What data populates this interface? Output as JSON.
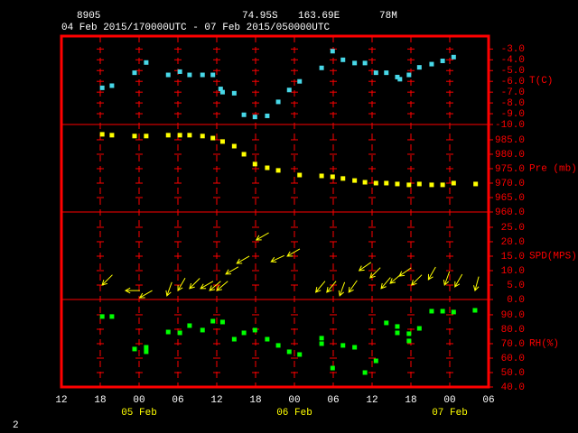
{
  "header": {
    "station": "8905",
    "latitude": "74.95S",
    "longitude": "163.69E",
    "elevation": "78M",
    "period": "04 Feb 2015/170000UTC - 07 Feb 2015/050000UTC"
  },
  "page_number": "2",
  "x_axis": {
    "xlim": [
      0,
      66
    ],
    "xticks": [
      {
        "value": 0,
        "label": "12"
      },
      {
        "value": 6,
        "label": "18"
      },
      {
        "value": 12,
        "label": "00"
      },
      {
        "value": 18,
        "label": "06"
      },
      {
        "value": 24,
        "label": "12"
      },
      {
        "value": 30,
        "label": "18"
      },
      {
        "value": 36,
        "label": "00"
      },
      {
        "value": 42,
        "label": "06"
      },
      {
        "value": 48,
        "label": "12"
      },
      {
        "value": 54,
        "label": "18"
      },
      {
        "value": 60,
        "label": "00"
      },
      {
        "value": 66,
        "label": "06"
      }
    ],
    "date_labels": [
      {
        "value": 12,
        "label": "05 Feb"
      },
      {
        "value": 36,
        "label": "06 Feb"
      },
      {
        "value": 60,
        "label": "07 Feb"
      }
    ]
  },
  "chart_data": [
    {
      "type": "scatter",
      "axis_label": "T(C)",
      "color": "#48d8e8",
      "ylim": [
        -10,
        -1.8
      ],
      "yticks": [
        {
          "value": -3,
          "label": "-3.0"
        },
        {
          "value": -4,
          "label": "-4.0"
        },
        {
          "value": -5,
          "label": "-5.0"
        },
        {
          "value": -6,
          "label": "-6.0"
        },
        {
          "value": -7,
          "label": "-7.0"
        },
        {
          "value": -8,
          "label": "-8.0"
        },
        {
          "value": -9,
          "label": "-9.0"
        },
        {
          "value": -10,
          "label": "-10.0"
        }
      ],
      "x": [
        6.3,
        7.8,
        11.3,
        13.1,
        16.5,
        18.3,
        19.8,
        21.8,
        23.4,
        24.6,
        24.9,
        26.7,
        28.2,
        29.9,
        31.8,
        33.5,
        35.2,
        36.8,
        40.2,
        41.9,
        43.5,
        45.3,
        46.9,
        48.6,
        50.2,
        51.9,
        52.3,
        53.7,
        55.3,
        57.2,
        58.9,
        60.6
      ],
      "values": [
        -6.6,
        -6.4,
        -5.2,
        -4.25,
        -5.4,
        -5.1,
        -5.4,
        -5.4,
        -5.4,
        -6.7,
        -7.0,
        -7.1,
        -9.1,
        -9.3,
        -9.2,
        -7.9,
        -6.8,
        -6.0,
        -4.75,
        -3.2,
        -4.0,
        -4.3,
        -4.3,
        -5.2,
        -5.2,
        -5.6,
        -5.8,
        -5.4,
        -4.7,
        -4.4,
        -4.1,
        -3.75
      ]
    },
    {
      "type": "scatter",
      "axis_label": "Pre (mb)",
      "color": "#ffff00",
      "ylim": [
        960,
        990.3
      ],
      "yticks": [
        {
          "value": 985,
          "label": "985.0"
        },
        {
          "value": 980,
          "label": "980.0"
        },
        {
          "value": 975,
          "label": "975.0"
        },
        {
          "value": 970,
          "label": "970.0"
        },
        {
          "value": 965,
          "label": "965.0"
        },
        {
          "value": 960,
          "label": "960.0"
        }
      ],
      "x": [
        6.3,
        7.8,
        11.3,
        13.1,
        16.5,
        18.3,
        19.8,
        21.8,
        23.4,
        24.9,
        26.7,
        28.2,
        29.9,
        31.8,
        33.5,
        36.8,
        40.2,
        41.9,
        43.5,
        45.3,
        46.9,
        48.6,
        50.2,
        51.9,
        53.7,
        55.3,
        57.2,
        58.9,
        60.6,
        64
      ],
      "values": [
        986.9,
        986.6,
        986.3,
        986.3,
        986.6,
        986.6,
        986.6,
        986.3,
        985.6,
        984.4,
        982.8,
        980,
        976.6,
        975.3,
        974.4,
        972.8,
        972.5,
        972.2,
        971.6,
        970.9,
        970.3,
        970,
        970,
        969.7,
        969.4,
        969.7,
        969.4,
        969.4,
        970,
        969.7
      ]
    },
    {
      "type": "wind",
      "axis_label": "SPD(MPS)",
      "color": "#ffff00",
      "ylim": [
        0,
        30.3
      ],
      "yticks": [
        {
          "value": 25,
          "label": "25.0"
        },
        {
          "value": 20,
          "label": "20.0"
        },
        {
          "value": 15,
          "label": "15.0"
        },
        {
          "value": 10,
          "label": "10.0"
        },
        {
          "value": 5,
          "label": "5.0"
        },
        {
          "value": 0,
          "label": "0.0"
        }
      ],
      "x": [
        6.3,
        9.9,
        12.1,
        16.3,
        18,
        19.8,
        21.5,
        22.9,
        24,
        25.4,
        27.1,
        30.1,
        32.4,
        34.9,
        39.3,
        41,
        43,
        44.4,
        46,
        47.7,
        49.4,
        50.8,
        52.2,
        54.1,
        56.7,
        59.2,
        60.8,
        63.9
      ],
      "values": [
        5,
        3.1,
        0.6,
        1.3,
        3.1,
        3.8,
        3.8,
        3.1,
        3.1,
        8.8,
        12.5,
        20.6,
        13.1,
        15,
        2.5,
        2.5,
        1.3,
        2.5,
        10,
        7.5,
        3.8,
        5.6,
        8.1,
        5,
        6.9,
        5,
        4.4,
        3.1
      ],
      "directions": [
        45,
        90,
        60,
        20,
        30,
        45,
        60,
        50,
        50,
        60,
        60,
        60,
        65,
        60,
        40,
        40,
        20,
        35,
        55,
        45,
        40,
        50,
        55,
        45,
        30,
        20,
        30,
        15
      ]
    },
    {
      "type": "scatter",
      "axis_label": "RH(%)",
      "color": "#00ff00",
      "ylim": [
        40,
        100.6
      ],
      "yticks": [
        {
          "value": 90,
          "label": "90.0"
        },
        {
          "value": 80,
          "label": "80.0"
        },
        {
          "value": 70,
          "label": "70.0"
        },
        {
          "value": 60,
          "label": "60.0"
        },
        {
          "value": 50,
          "label": "50.0"
        },
        {
          "value": 40,
          "label": "40.0"
        }
      ],
      "x": [
        6.3,
        7.8,
        11.3,
        13.1,
        13.1,
        16.5,
        18.3,
        19.8,
        21.8,
        23.4,
        24.9,
        26.7,
        28.2,
        29.9,
        31.8,
        33.5,
        35.2,
        36.8,
        40.2,
        40.2,
        41.9,
        43.5,
        45.3,
        46.9,
        48.6,
        50.2,
        51.9,
        51.9,
        53.7,
        53.7,
        55.3,
        57.2,
        58.9,
        60.6,
        63.9
      ],
      "values": [
        88.8,
        88.8,
        66.3,
        67.5,
        64.4,
        78.1,
        77.5,
        82.5,
        79.4,
        85.6,
        85,
        73.1,
        77.5,
        79.4,
        73.1,
        68.8,
        64.4,
        62.5,
        73.8,
        70,
        53.1,
        68.8,
        67.5,
        50,
        58.1,
        84.4,
        81.9,
        77.5,
        76.9,
        71.9,
        80.6,
        92.5,
        92.5,
        91.9,
        93.1
      ]
    }
  ]
}
